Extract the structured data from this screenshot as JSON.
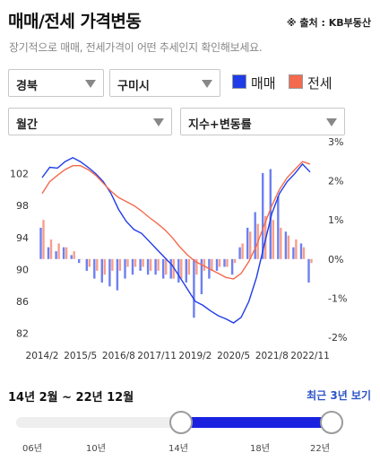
{
  "header": {
    "title": "매매/전세 가격변동",
    "source": "※ 출처 : KB부동산",
    "description": "장기적으로 매매, 전세가격이 어떤 추세인지 확인해보세요."
  },
  "filters": {
    "region": "경북",
    "city": "구미시",
    "interval": "월간",
    "metric": "지수+변동률"
  },
  "legend": {
    "sale": {
      "label": "매매",
      "color": "#1f3ce8"
    },
    "jeonse": {
      "label": "전세",
      "color": "#f36a4e"
    }
  },
  "chart_data": {
    "type": "line",
    "x": [
      "2014/2",
      "2014/5",
      "2014/8",
      "2014/11",
      "2015/2",
      "2015/5",
      "2015/8",
      "2015/11",
      "2016/2",
      "2016/5",
      "2016/8",
      "2016/11",
      "2017/2",
      "2017/5",
      "2017/8",
      "2017/11",
      "2018/2",
      "2018/5",
      "2018/8",
      "2018/11",
      "2019/2",
      "2019/5",
      "2019/8",
      "2019/11",
      "2020/2",
      "2020/5",
      "2020/8",
      "2020/11",
      "2021/2",
      "2021/5",
      "2021/8",
      "2021/11",
      "2022/2",
      "2022/5",
      "2022/8",
      "2022/11"
    ],
    "x_tick_labels": [
      "2014/2",
      "2015/5",
      "2016/8",
      "2017/11",
      "2019/2",
      "2020/5",
      "2021/8",
      "2022/11"
    ],
    "y_left_ticks": [
      82,
      86,
      90,
      94,
      98,
      102
    ],
    "y_left_range": [
      81.5,
      106
    ],
    "y_right_ticks": [
      "3%",
      "2%",
      "1%",
      "0%",
      "-1%",
      "-2%"
    ],
    "y_right_range": [
      -2,
      3
    ],
    "series": [
      {
        "name": "매매",
        "color": "#1f3ce8",
        "values": [
          101.5,
          102.8,
          102.7,
          103.5,
          104.0,
          103.5,
          102.8,
          102.0,
          101.0,
          99.5,
          97.5,
          96.0,
          95.0,
          94.5,
          93.5,
          92.5,
          91.5,
          90.5,
          89.0,
          87.5,
          86.0,
          85.5,
          84.8,
          84.2,
          83.8,
          83.3,
          84.0,
          86.0,
          89.0,
          93.0,
          97.0,
          99.5,
          101.0,
          102.0,
          103.2,
          102.2
        ]
      },
      {
        "name": "전세",
        "color": "#f36a4e",
        "values": [
          99.5,
          101.0,
          101.8,
          102.5,
          103.0,
          103.0,
          102.5,
          101.8,
          100.8,
          99.8,
          99.0,
          98.5,
          98.0,
          97.3,
          96.5,
          95.8,
          95.0,
          94.0,
          92.8,
          91.8,
          91.0,
          90.5,
          90.0,
          89.5,
          89.0,
          88.8,
          89.5,
          91.0,
          93.0,
          95.5,
          98.0,
          100.0,
          101.5,
          102.5,
          103.5,
          103.2
        ]
      },
      {
        "name": "매매 변동률",
        "color": "#1f3ce8",
        "type": "bar",
        "values": [
          0.8,
          0.3,
          0.2,
          0.3,
          0.1,
          -0.1,
          -0.3,
          -0.5,
          -0.6,
          -0.7,
          -0.8,
          -0.5,
          -0.4,
          -0.3,
          -0.4,
          -0.4,
          -0.5,
          -0.5,
          -0.6,
          -0.6,
          -1.5,
          -0.9,
          -0.5,
          -0.3,
          -0.2,
          -0.4,
          0.3,
          0.8,
          1.2,
          2.2,
          2.3,
          1.6,
          0.7,
          0.3,
          0.4,
          -0.6
        ]
      },
      {
        "name": "전세 변동률",
        "color": "#f36a4e",
        "type": "bar",
        "values": [
          1.0,
          0.5,
          0.4,
          0.3,
          0.2,
          0.0,
          -0.2,
          -0.3,
          -0.4,
          -0.3,
          -0.3,
          -0.2,
          -0.2,
          -0.2,
          -0.3,
          -0.3,
          -0.4,
          -0.5,
          -0.5,
          -0.4,
          -0.4,
          -0.3,
          -0.3,
          -0.2,
          -0.2,
          -0.1,
          0.4,
          0.7,
          0.9,
          1.1,
          1.0,
          0.8,
          0.6,
          0.5,
          0.3,
          -0.1
        ]
      }
    ]
  },
  "range": {
    "label": "14년 2월 ~ 22년 12월",
    "recent_button": "최근 3년 보기",
    "start": "14년",
    "end": "22년",
    "ticks": [
      "06년",
      "10년",
      "14년",
      "18년",
      "22년"
    ]
  }
}
